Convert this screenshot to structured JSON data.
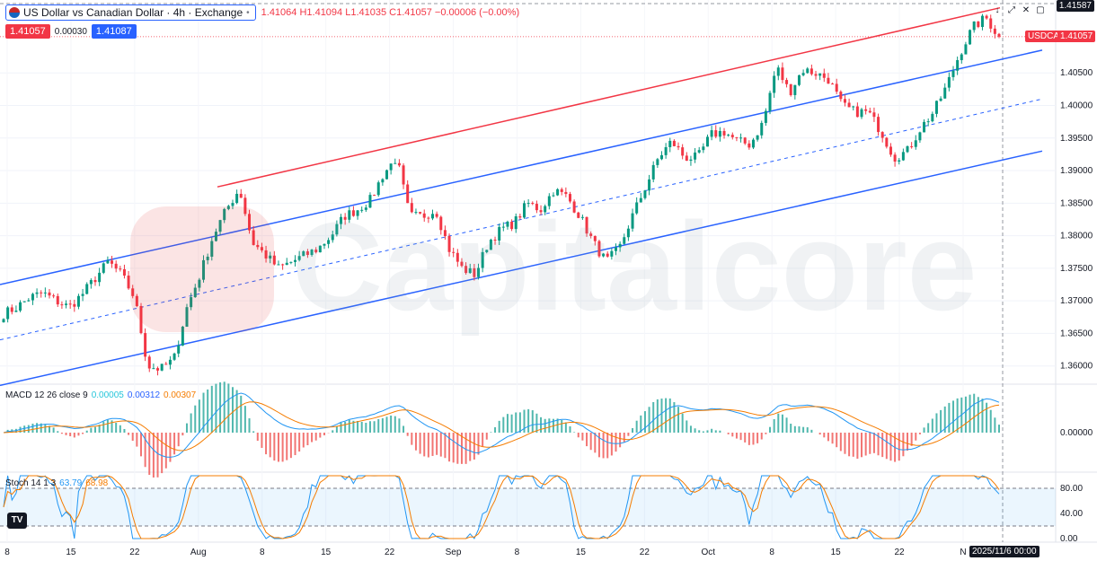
{
  "header": {
    "title": "US Dollar vs Canadian Dollar · 4h · Exchange",
    "ohlc": "1.41064 H1.41094 L1.41035 C1.41057 −0.00006 (−0.00%)",
    "sell_price": "1.41057",
    "spread": "0.00030",
    "buy_price": "1.41087"
  },
  "toolbar": {
    "icons": [
      "arrow-down-icon",
      "fullscreen-icon",
      "close-icon",
      "restore-icon"
    ]
  },
  "watermark": "Capitalcore",
  "axis": {
    "symbol_badge": "USDCAD",
    "last_price_badge": "1.41057",
    "top_badge": "1.41587",
    "time_badge": "2025/11/6  00:00",
    "price_ticks": [
      "1.40500",
      "1.40000",
      "1.39500",
      "1.39000",
      "1.38500",
      "1.38000",
      "1.37500",
      "1.37000",
      "1.36500",
      "1.36000"
    ],
    "macd_ticks": [
      "0.00000"
    ],
    "stoch_ticks": [
      "80.00",
      "40.00",
      "0.00"
    ],
    "date_ticks": [
      "8",
      "15",
      "22",
      "Aug",
      "8",
      "15",
      "22",
      "Sep",
      "8",
      "15",
      "22",
      "Oct",
      "8",
      "15",
      "22",
      "N"
    ]
  },
  "macd": {
    "label": "MACD 12 26 close 9",
    "v1": "0.00005",
    "v2": "0.00312",
    "v3": "0.00307"
  },
  "stoch": {
    "label": "Stoch 14 1 3",
    "k": "63.79",
    "d": "68.98"
  },
  "tv_logo": "TV",
  "colors": {
    "up": "#089981",
    "down": "#f23645",
    "channel_blue": "#2962ff",
    "channel_red": "#f23645",
    "macd_line": "#2196f3",
    "signal_line": "#f57c00"
  },
  "chart_data": {
    "type": "candlestick",
    "timeframe": "4h",
    "price_range": [
      1.3572,
      1.4162
    ],
    "channels": [
      {
        "color": "blue",
        "points": [
          [
            "start",
            1.3725
          ],
          [
            "end",
            1.4085
          ]
        ]
      },
      {
        "color": "blue",
        "points": [
          [
            "start",
            1.357
          ],
          [
            "end",
            1.393
          ]
        ]
      },
      {
        "color": "blue-dashed",
        "points": [
          [
            "start",
            1.364
          ],
          [
            "end",
            1.401
          ]
        ]
      },
      {
        "color": "red",
        "points": [
          [
            "Aug 1",
            1.3875
          ],
          [
            "Nov 5",
            1.415
          ]
        ]
      }
    ],
    "close_path": [
      1.368,
      1.369,
      1.3705,
      1.3712,
      1.37,
      1.369,
      1.371,
      1.3735,
      1.376,
      1.374,
      1.3705,
      1.36,
      1.3595,
      1.361,
      1.369,
      1.374,
      1.38,
      1.384,
      1.3872,
      1.379,
      1.377,
      1.375,
      1.376,
      1.377,
      1.378,
      1.38,
      1.383,
      1.384,
      1.3855,
      1.3895,
      1.392,
      1.383,
      1.383,
      1.384,
      1.378,
      1.375,
      1.374,
      1.379,
      1.381,
      1.382,
      1.385,
      1.384,
      1.387,
      1.386,
      1.383,
      1.379,
      1.376,
      1.378,
      1.383,
      1.3875,
      1.392,
      1.3945,
      1.392,
      1.392,
      1.3955,
      1.396,
      1.3945,
      1.394,
      1.3975,
      1.406,
      1.402,
      1.4055,
      1.405,
      1.404,
      1.4,
      1.399,
      1.399,
      1.396,
      1.392,
      1.393,
      1.3965,
      1.399,
      1.403,
      1.408,
      1.412,
      1.4135,
      1.4105
    ],
    "last_price": 1.41057
  }
}
